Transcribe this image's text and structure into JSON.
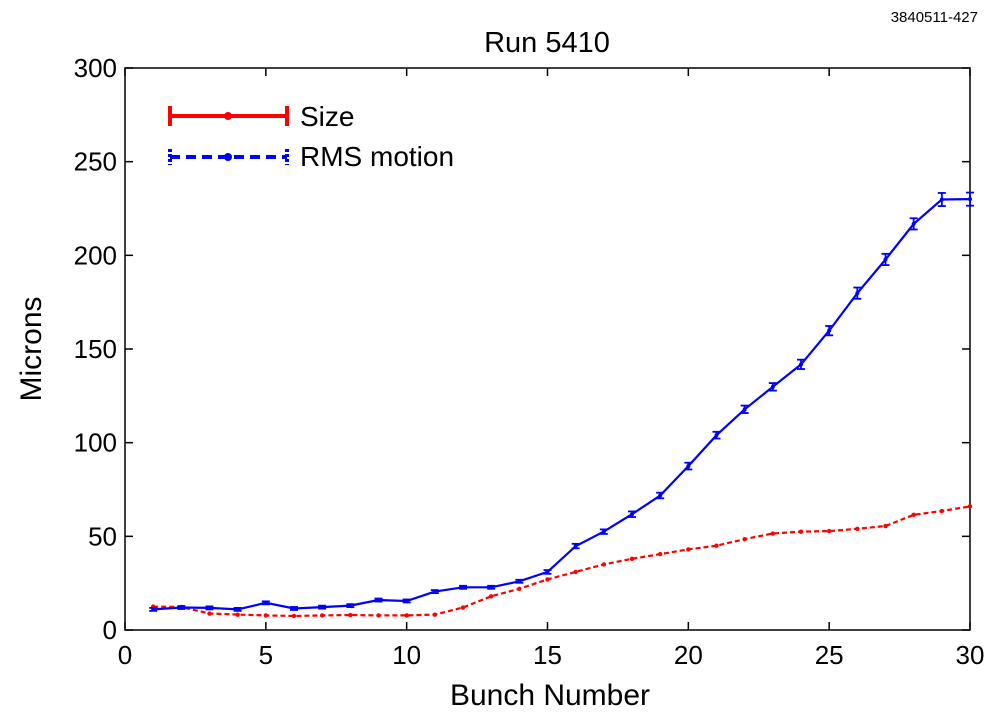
{
  "figure_id": "3840511-427",
  "chart_data": {
    "type": "line",
    "title": "Run 5410",
    "xlabel": "Bunch Number",
    "ylabel": "Microns",
    "xlim": [
      0,
      30
    ],
    "ylim": [
      0,
      300
    ],
    "x_ticks": [
      0,
      5,
      10,
      15,
      20,
      25,
      30
    ],
    "y_ticks": [
      0,
      50,
      100,
      150,
      200,
      250,
      300
    ],
    "grid": false,
    "legend_position": "top-left",
    "x": [
      1,
      2,
      3,
      4,
      5,
      6,
      7,
      8,
      9,
      10,
      11,
      12,
      13,
      14,
      15,
      16,
      17,
      18,
      19,
      20,
      21,
      22,
      23,
      24,
      25,
      26,
      27,
      28,
      29,
      30
    ],
    "series": [
      {
        "name": "Size",
        "color": "#ff0000",
        "values": [
          12.5,
          12.3,
          8.8,
          8.2,
          7.8,
          7.5,
          7.8,
          8.0,
          7.8,
          7.8,
          8.2,
          12.0,
          18.0,
          22.0,
          27.0,
          31.0,
          35.0,
          38.0,
          40.5,
          43.0,
          45.0,
          48.5,
          51.5,
          52.5,
          52.8,
          54.0,
          55.5,
          61.5,
          63.5,
          66.0
        ]
      },
      {
        "name": "RMS motion",
        "color": "#0000ff",
        "values": [
          11.0,
          12.0,
          11.8,
          11.0,
          14.5,
          11.5,
          12.2,
          13.0,
          16.0,
          15.5,
          20.5,
          22.8,
          22.8,
          26.0,
          31.0,
          44.8,
          52.5,
          61.8,
          71.8,
          87.5,
          104.0,
          117.8,
          129.8,
          141.8,
          159.8,
          179.8,
          197.8,
          216.8,
          229.8,
          230.0
        ],
        "errors": [
          0.8,
          0.8,
          0.8,
          0.8,
          0.8,
          0.8,
          0.8,
          0.8,
          0.8,
          0.8,
          0.8,
          0.8,
          0.8,
          0.8,
          1.0,
          1.2,
          1.2,
          1.5,
          1.5,
          1.8,
          1.8,
          2.0,
          2.0,
          2.5,
          2.5,
          3.0,
          3.0,
          3.0,
          3.5,
          3.5
        ]
      }
    ]
  }
}
